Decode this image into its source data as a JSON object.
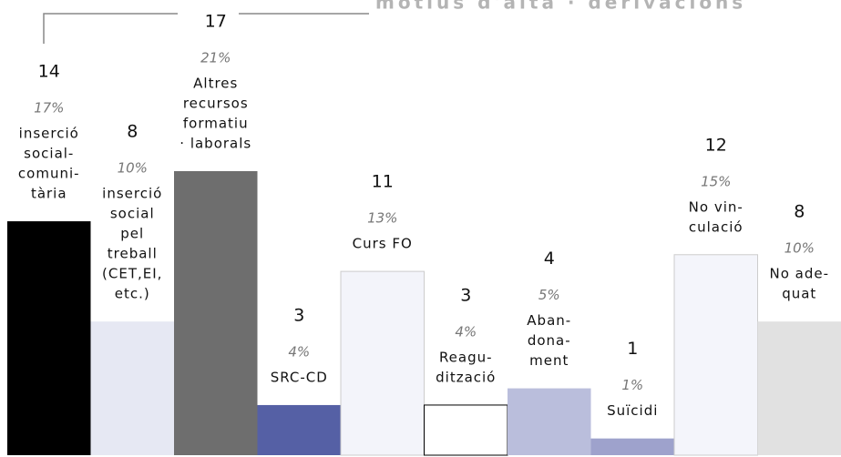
{
  "chart_data": {
    "type": "bar",
    "title": "motius d'alta · derivacions",
    "categories": [
      [
        "inserció",
        "social-",
        "comuni-",
        "tària"
      ],
      [
        "inserció",
        "social",
        "pel",
        "treball",
        "(CET,EI,",
        "etc.)"
      ],
      [
        "Altres",
        "recursos",
        "formatiu",
        "· laborals"
      ],
      [
        "SRC-CD"
      ],
      [
        "Curs FO"
      ],
      [
        "Reagu-",
        "dització"
      ],
      [
        "Aban-",
        "dona-",
        "ment"
      ],
      [
        "Suïcidi"
      ],
      [
        "No vin-",
        "culació"
      ],
      [
        "No ade-",
        "quat"
      ]
    ],
    "values": [
      14,
      8,
      17,
      3,
      11,
      3,
      4,
      1,
      12,
      8
    ],
    "shares": [
      17,
      10,
      21,
      4,
      13,
      4,
      5,
      1,
      15,
      10
    ],
    "share_labels": [
      "17%",
      "10%",
      "21%",
      "4%",
      "13%",
      "4%",
      "5%",
      "1%",
      "15%",
      "10%"
    ],
    "colors": [
      "#000000",
      "#e6e8f3",
      "#6e6e6e",
      "#5560a5",
      "#f3f4fa",
      "#ffffff",
      "#babedc",
      "#9ea2cc",
      "#f4f5fb",
      "#e1e1e1"
    ]
  }
}
